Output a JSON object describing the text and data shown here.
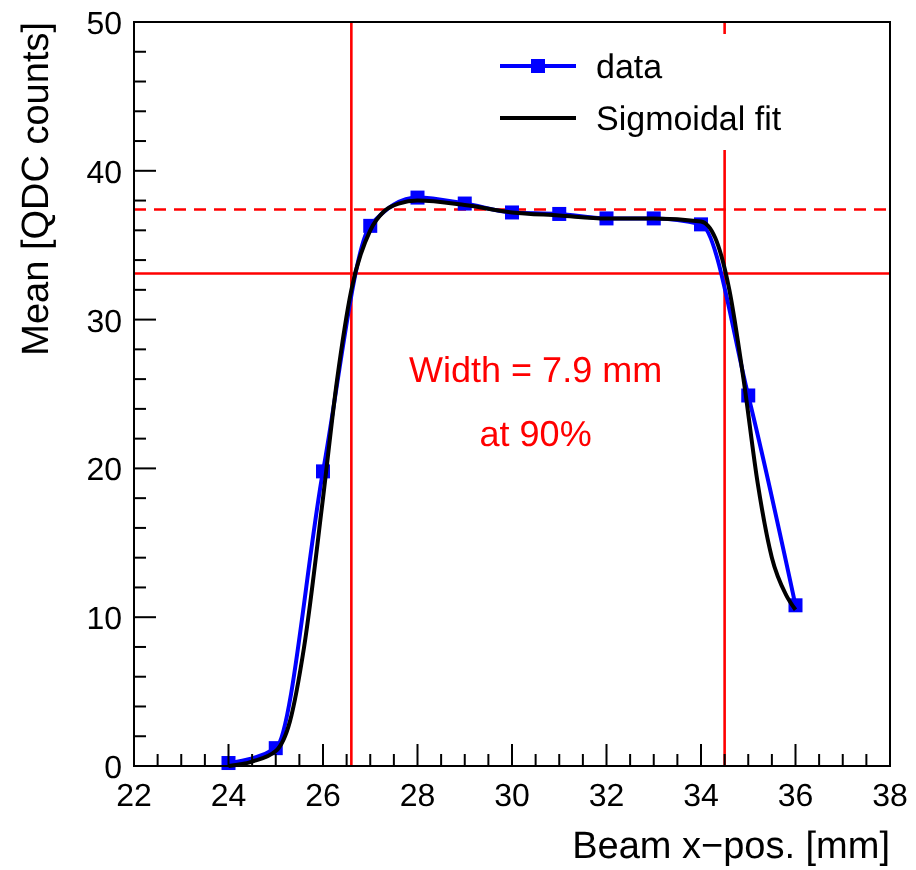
{
  "chart_data": {
    "type": "line",
    "xlabel": "Beam x−pos. [mm]",
    "ylabel": "Mean [QDC counts]",
    "xlim": [
      22,
      38
    ],
    "xticks": [
      22,
      24,
      26,
      28,
      30,
      32,
      34,
      36,
      38
    ],
    "ylim": [
      0,
      50
    ],
    "yticks": [
      0,
      10,
      20,
      30,
      40,
      50
    ],
    "grid": false,
    "legend": "top right",
    "series": [
      {
        "name": "data",
        "color": "#0000ff",
        "marker": "square",
        "x": [
          24,
          25,
          26,
          27,
          28,
          29,
          30,
          31,
          32,
          33,
          34,
          35,
          36
        ],
        "values": [
          0.2,
          1.2,
          19.8,
          36.3,
          38.2,
          37.8,
          37.2,
          37.1,
          36.8,
          36.8,
          36.4,
          24.9,
          10.8
        ]
      },
      {
        "name": "Sigmoidal fit",
        "color": "#000000",
        "marker": "none",
        "x": [
          24,
          24.5,
          25,
          25.3,
          25.6,
          26,
          26.3,
          26.6,
          27,
          27.3,
          27.6,
          28,
          29,
          30,
          31,
          32,
          33,
          34,
          34.3,
          34.6,
          34.9,
          35.2,
          35.5,
          35.8,
          36
        ],
        "values": [
          0,
          0.3,
          1,
          3,
          8,
          18,
          26,
          32,
          36,
          37.3,
          37.8,
          38,
          37.7,
          37.2,
          37,
          36.8,
          36.8,
          36.6,
          35.5,
          32,
          26,
          19,
          14,
          11.5,
          10.5
        ]
      }
    ],
    "ref_lines": [
      {
        "axis": "y",
        "value": 37.4,
        "color": "#ff0000",
        "line_style": "dashed"
      },
      {
        "axis": "y",
        "value": 33.1,
        "color": "#ff0000",
        "line_style": "solid"
      },
      {
        "axis": "x",
        "value": 26.6,
        "color": "#ff0000",
        "line_style": "solid"
      },
      {
        "axis": "x",
        "value": 34.5,
        "color": "#ff0000",
        "line_style": "solid"
      }
    ],
    "annotations": [
      "Width = 7.9 mm",
      "at 90%"
    ]
  }
}
